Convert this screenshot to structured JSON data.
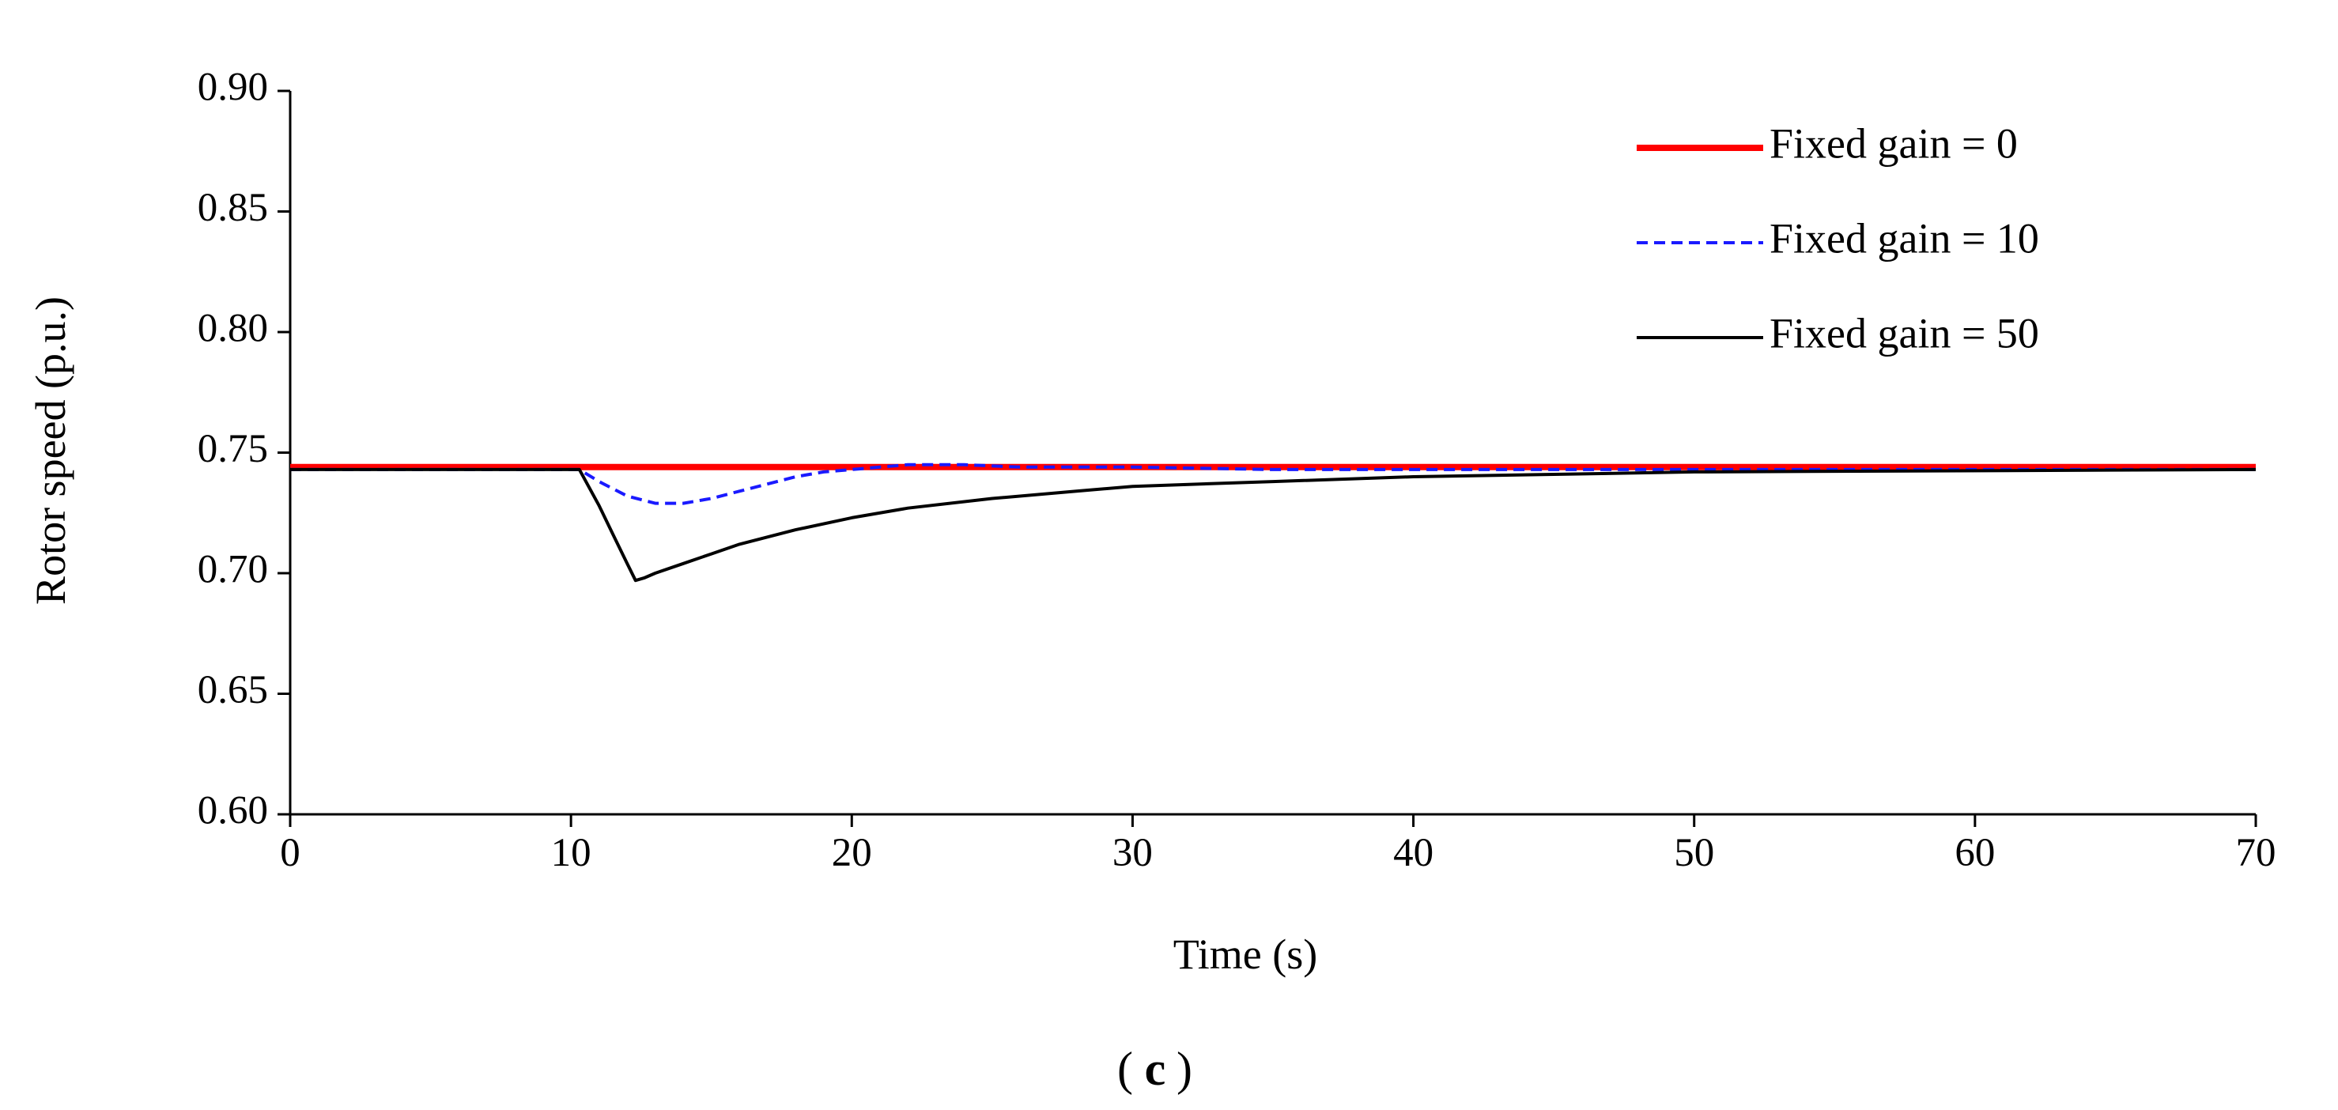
{
  "chart_data": {
    "type": "line",
    "title": "",
    "xlabel": "Time (s)",
    "ylabel": "Rotor speed (p.u.)",
    "xlim": [
      0,
      70
    ],
    "ylim": [
      0.6,
      0.9
    ],
    "xticks": [
      0,
      10,
      20,
      30,
      40,
      50,
      60,
      70
    ],
    "yticks": [
      0.6,
      0.65,
      0.7,
      0.75,
      0.8,
      0.85,
      0.9
    ],
    "xtick_labels": [
      "0",
      "10",
      "20",
      "30",
      "40",
      "50",
      "60",
      "70"
    ],
    "ytick_labels": [
      "0.60",
      "0.65",
      "0.70",
      "0.75",
      "0.80",
      "0.85",
      "0.90"
    ],
    "grid": false,
    "legend_position": "top-right",
    "series": [
      {
        "name": "Fixed gain = 0",
        "color": "#ff0000",
        "style": "solid",
        "x": [
          0,
          10,
          70
        ],
        "y": [
          0.744,
          0.744,
          0.744
        ]
      },
      {
        "name": "Fixed gain = 10",
        "color": "#1a1aff",
        "style": "dashed",
        "x": [
          0,
          10,
          10.3,
          11,
          12,
          13,
          14,
          15,
          16,
          17,
          18,
          19,
          20,
          21,
          22,
          23,
          24,
          26,
          28,
          30,
          35,
          40,
          70
        ],
        "y": [
          0.743,
          0.743,
          0.743,
          0.738,
          0.732,
          0.729,
          0.729,
          0.731,
          0.734,
          0.737,
          0.74,
          0.742,
          0.743,
          0.744,
          0.745,
          0.745,
          0.745,
          0.744,
          0.744,
          0.744,
          0.743,
          0.743,
          0.743
        ]
      },
      {
        "name": "Fixed gain = 50",
        "color": "#000000",
        "style": "solid",
        "x": [
          0,
          10,
          10.3,
          11,
          11.5,
          12,
          12.3,
          12.6,
          13,
          14,
          15,
          16,
          18,
          20,
          22,
          25,
          28,
          30,
          35,
          40,
          45,
          50,
          70
        ],
        "y": [
          0.743,
          0.743,
          0.743,
          0.728,
          0.716,
          0.704,
          0.697,
          0.698,
          0.7,
          0.704,
          0.708,
          0.712,
          0.718,
          0.723,
          0.727,
          0.731,
          0.734,
          0.736,
          0.738,
          0.74,
          0.741,
          0.742,
          0.743
        ]
      }
    ],
    "panel_label": "c"
  }
}
